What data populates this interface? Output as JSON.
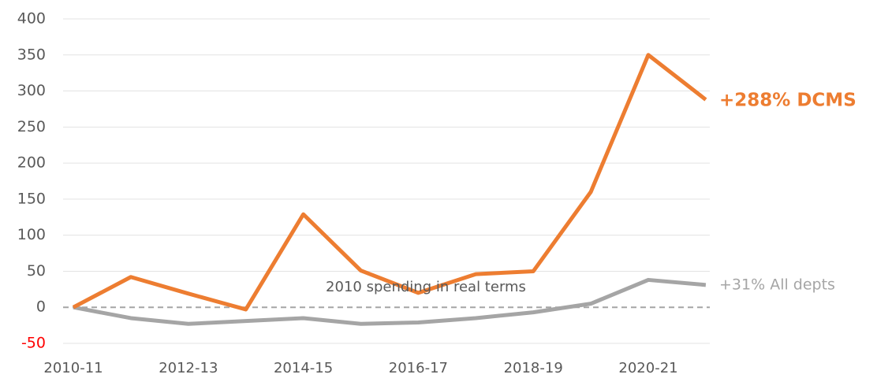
{
  "chart_data": {
    "type": "line",
    "categories": [
      "2010-11",
      null,
      "2012-13",
      null,
      "2014-15",
      null,
      "2016-17",
      null,
      "2018-19",
      null,
      "2020-21",
      null
    ],
    "series": [
      {
        "name": "DCMS",
        "color": "#ed7d31",
        "values": [
          0,
          42,
          19,
          -3,
          129,
          51,
          20,
          46,
          50,
          160,
          350,
          288
        ]
      },
      {
        "name": "All depts",
        "color": "#a5a5a5",
        "values": [
          0,
          -15,
          -23,
          -19,
          -15,
          -23,
          -21,
          -15,
          -7,
          5,
          38,
          31
        ]
      }
    ],
    "annotations": [
      "+288% DCMS",
      "+31% All depts",
      "2010 spending in real terms"
    ],
    "ylim": [
      -50,
      400
    ],
    "yticks": [
      -50,
      0,
      50,
      100,
      150,
      200,
      250,
      300,
      350,
      400
    ],
    "negative_tick_color": "#ff0000",
    "grid": true
  }
}
